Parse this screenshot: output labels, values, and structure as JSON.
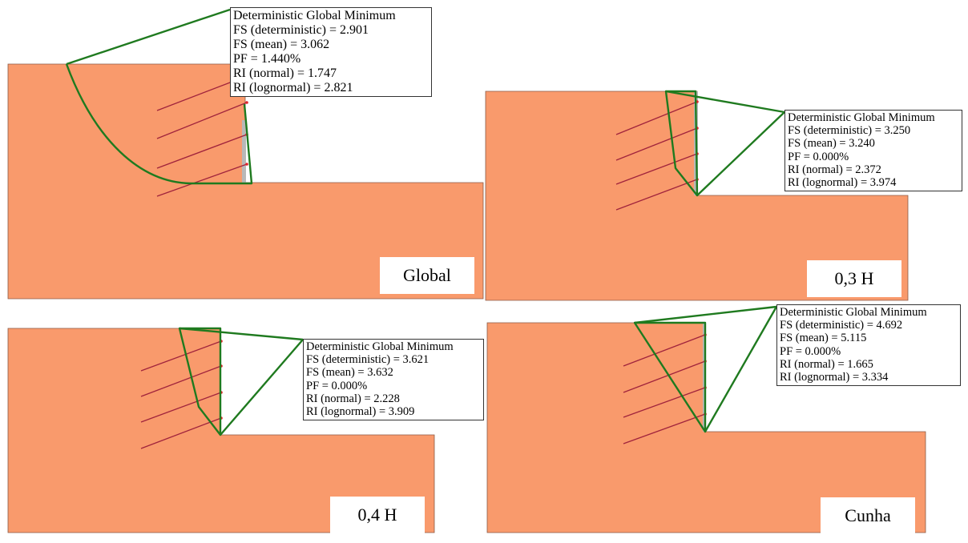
{
  "colors": {
    "soil": "#f99a6c",
    "soil_edge": "#8a5a45",
    "slip_surface": "#1f7a1f",
    "anchor": "#a0233c",
    "anchor_head": "#e0242c",
    "wall": "#b8b8b8",
    "text_green": "#1e7d1e"
  },
  "panels": [
    {
      "id": "global",
      "label": "Global",
      "result": {
        "title": "Deterministic Global Minimum",
        "fs_deterministic": "FS (deterministic) = 2.901",
        "fs_mean": "FS (mean) = 3.062",
        "pf": "PF = 1.440%",
        "ri_normal": "RI (normal) = 1.747",
        "ri_lognormal": "RI (lognormal) = 2.821"
      }
    },
    {
      "id": "h03",
      "label": "0,3 H",
      "result": {
        "title": "Deterministic Global Minimum",
        "fs_deterministic": "FS (deterministic) = 3.250",
        "fs_mean": "FS (mean) = 3.240",
        "pf": "PF = 0.000%",
        "ri_normal": "RI (normal) = 2.372",
        "ri_lognormal": "RI (lognormal) = 3.974"
      }
    },
    {
      "id": "h04",
      "label": "0,4 H",
      "result": {
        "title": "Deterministic Global Minimum",
        "fs_deterministic": "FS (deterministic) = 3.621",
        "fs_mean": "FS (mean) = 3.632",
        "pf": "PF = 0.000%",
        "ri_normal": "RI (normal) = 2.228",
        "ri_lognormal": "RI (lognormal) = 3.909"
      }
    },
    {
      "id": "cunha",
      "label": "Cunha",
      "result": {
        "title": "Deterministic Global Minimum",
        "fs_deterministic": "FS (deterministic) = 4.692",
        "fs_mean": "FS (mean) = 5.115",
        "pf": "PF = 0.000%",
        "ri_normal": "RI (normal) = 1.665",
        "ri_lognormal": "RI (lognormal) = 3.334"
      }
    }
  ]
}
